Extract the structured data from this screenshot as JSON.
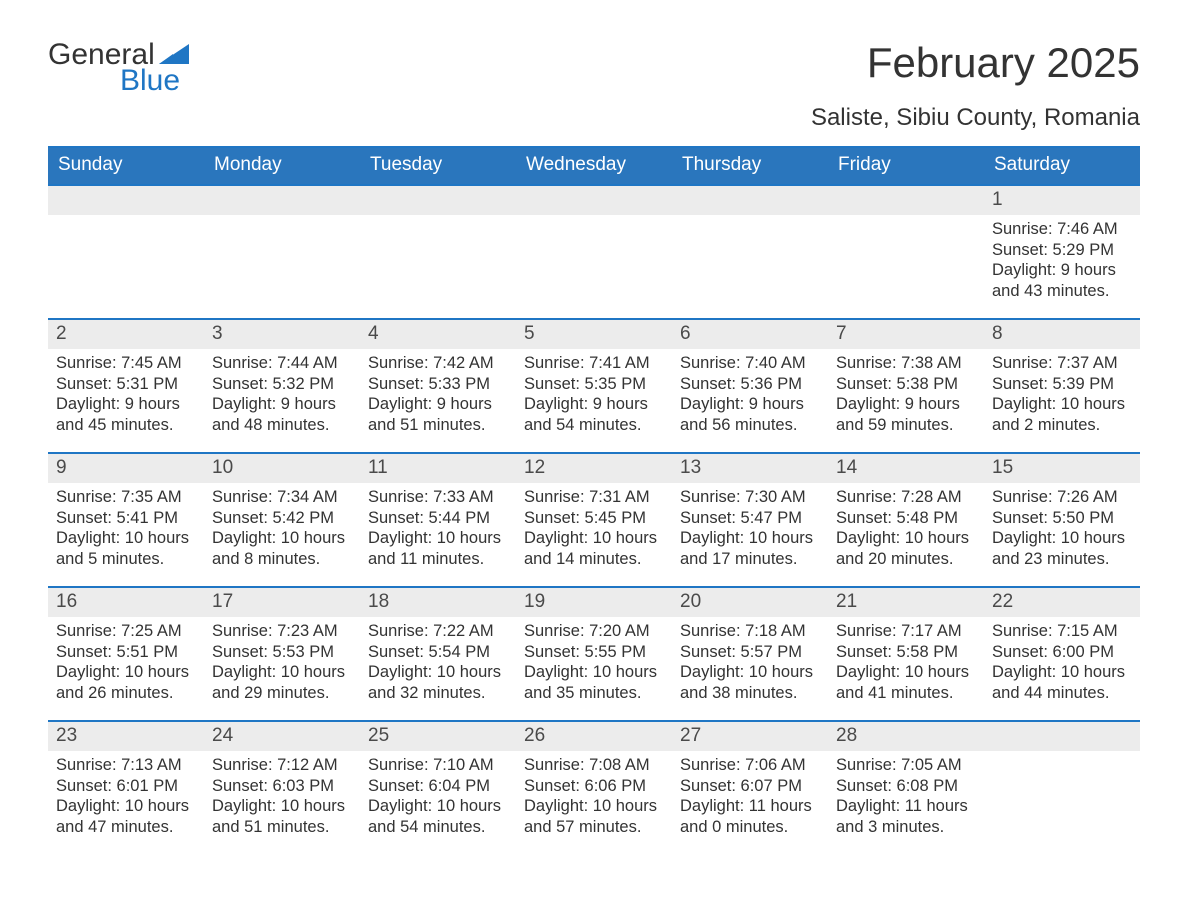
{
  "brand": {
    "part1": "General",
    "part2": "Blue",
    "brand_color": "#1f76c4"
  },
  "colors": {
    "header_bg": "#2a76bd",
    "header_text": "#ffffff",
    "stripe": "#ececec",
    "rule": "#1f76c4",
    "body_text": "#333333",
    "background": "#ffffff"
  },
  "fontsizes": {
    "month_title_pt": 32,
    "location_pt": 18,
    "weekday_pt": 14,
    "daynum_pt": 14,
    "body_pt": 12
  },
  "title": {
    "month": "February 2025",
    "location": "Saliste, Sibiu County, Romania"
  },
  "weekdays": [
    "Sunday",
    "Monday",
    "Tuesday",
    "Wednesday",
    "Thursday",
    "Friday",
    "Saturday"
  ],
  "labels": {
    "sunrise_prefix": "Sunrise: ",
    "sunset_prefix": "Sunset: ",
    "daylight_prefix": "Daylight: "
  },
  "weeks": [
    [
      {
        "day": ""
      },
      {
        "day": ""
      },
      {
        "day": ""
      },
      {
        "day": ""
      },
      {
        "day": ""
      },
      {
        "day": ""
      },
      {
        "day": "1",
        "sunrise": "7:46 AM",
        "sunset": "5:29 PM",
        "daylight_l1": "9 hours",
        "daylight_l2": "and 43 minutes."
      }
    ],
    [
      {
        "day": "2",
        "sunrise": "7:45 AM",
        "sunset": "5:31 PM",
        "daylight_l1": "9 hours",
        "daylight_l2": "and 45 minutes."
      },
      {
        "day": "3",
        "sunrise": "7:44 AM",
        "sunset": "5:32 PM",
        "daylight_l1": "9 hours",
        "daylight_l2": "and 48 minutes."
      },
      {
        "day": "4",
        "sunrise": "7:42 AM",
        "sunset": "5:33 PM",
        "daylight_l1": "9 hours",
        "daylight_l2": "and 51 minutes."
      },
      {
        "day": "5",
        "sunrise": "7:41 AM",
        "sunset": "5:35 PM",
        "daylight_l1": "9 hours",
        "daylight_l2": "and 54 minutes."
      },
      {
        "day": "6",
        "sunrise": "7:40 AM",
        "sunset": "5:36 PM",
        "daylight_l1": "9 hours",
        "daylight_l2": "and 56 minutes."
      },
      {
        "day": "7",
        "sunrise": "7:38 AM",
        "sunset": "5:38 PM",
        "daylight_l1": "9 hours",
        "daylight_l2": "and 59 minutes."
      },
      {
        "day": "8",
        "sunrise": "7:37 AM",
        "sunset": "5:39 PM",
        "daylight_l1": "10 hours",
        "daylight_l2": "and 2 minutes."
      }
    ],
    [
      {
        "day": "9",
        "sunrise": "7:35 AM",
        "sunset": "5:41 PM",
        "daylight_l1": "10 hours",
        "daylight_l2": "and 5 minutes."
      },
      {
        "day": "10",
        "sunrise": "7:34 AM",
        "sunset": "5:42 PM",
        "daylight_l1": "10 hours",
        "daylight_l2": "and 8 minutes."
      },
      {
        "day": "11",
        "sunrise": "7:33 AM",
        "sunset": "5:44 PM",
        "daylight_l1": "10 hours",
        "daylight_l2": "and 11 minutes."
      },
      {
        "day": "12",
        "sunrise": "7:31 AM",
        "sunset": "5:45 PM",
        "daylight_l1": "10 hours",
        "daylight_l2": "and 14 minutes."
      },
      {
        "day": "13",
        "sunrise": "7:30 AM",
        "sunset": "5:47 PM",
        "daylight_l1": "10 hours",
        "daylight_l2": "and 17 minutes."
      },
      {
        "day": "14",
        "sunrise": "7:28 AM",
        "sunset": "5:48 PM",
        "daylight_l1": "10 hours",
        "daylight_l2": "and 20 minutes."
      },
      {
        "day": "15",
        "sunrise": "7:26 AM",
        "sunset": "5:50 PM",
        "daylight_l1": "10 hours",
        "daylight_l2": "and 23 minutes."
      }
    ],
    [
      {
        "day": "16",
        "sunrise": "7:25 AM",
        "sunset": "5:51 PM",
        "daylight_l1": "10 hours",
        "daylight_l2": "and 26 minutes."
      },
      {
        "day": "17",
        "sunrise": "7:23 AM",
        "sunset": "5:53 PM",
        "daylight_l1": "10 hours",
        "daylight_l2": "and 29 minutes."
      },
      {
        "day": "18",
        "sunrise": "7:22 AM",
        "sunset": "5:54 PM",
        "daylight_l1": "10 hours",
        "daylight_l2": "and 32 minutes."
      },
      {
        "day": "19",
        "sunrise": "7:20 AM",
        "sunset": "5:55 PM",
        "daylight_l1": "10 hours",
        "daylight_l2": "and 35 minutes."
      },
      {
        "day": "20",
        "sunrise": "7:18 AM",
        "sunset": "5:57 PM",
        "daylight_l1": "10 hours",
        "daylight_l2": "and 38 minutes."
      },
      {
        "day": "21",
        "sunrise": "7:17 AM",
        "sunset": "5:58 PM",
        "daylight_l1": "10 hours",
        "daylight_l2": "and 41 minutes."
      },
      {
        "day": "22",
        "sunrise": "7:15 AM",
        "sunset": "6:00 PM",
        "daylight_l1": "10 hours",
        "daylight_l2": "and 44 minutes."
      }
    ],
    [
      {
        "day": "23",
        "sunrise": "7:13 AM",
        "sunset": "6:01 PM",
        "daylight_l1": "10 hours",
        "daylight_l2": "and 47 minutes."
      },
      {
        "day": "24",
        "sunrise": "7:12 AM",
        "sunset": "6:03 PM",
        "daylight_l1": "10 hours",
        "daylight_l2": "and 51 minutes."
      },
      {
        "day": "25",
        "sunrise": "7:10 AM",
        "sunset": "6:04 PM",
        "daylight_l1": "10 hours",
        "daylight_l2": "and 54 minutes."
      },
      {
        "day": "26",
        "sunrise": "7:08 AM",
        "sunset": "6:06 PM",
        "daylight_l1": "10 hours",
        "daylight_l2": "and 57 minutes."
      },
      {
        "day": "27",
        "sunrise": "7:06 AM",
        "sunset": "6:07 PM",
        "daylight_l1": "11 hours",
        "daylight_l2": "and 0 minutes."
      },
      {
        "day": "28",
        "sunrise": "7:05 AM",
        "sunset": "6:08 PM",
        "daylight_l1": "11 hours",
        "daylight_l2": "and 3 minutes."
      },
      {
        "day": ""
      }
    ]
  ]
}
